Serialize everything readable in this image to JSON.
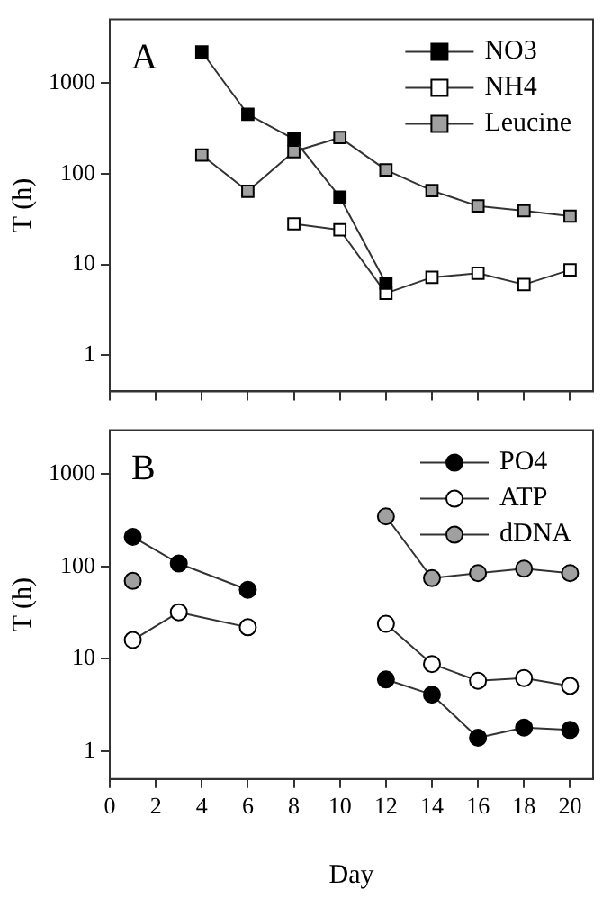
{
  "chart_data": [
    {
      "type": "line",
      "annotations": [
        "A"
      ],
      "ylabel": "T (h)",
      "log": "y",
      "grid": false,
      "legend": "top right",
      "marker": "square",
      "tick_labels": "y",
      "xlim": [
        0,
        21
      ],
      "xticks": [
        0,
        2,
        4,
        6,
        8,
        10,
        12,
        14,
        16,
        18,
        20
      ],
      "ylim": [
        0.4,
        5000
      ],
      "yticks": [
        1,
        10,
        100,
        1000
      ],
      "series": [
        {
          "name": "NO3",
          "color": "#000000",
          "x": [
            4,
            6,
            8,
            10,
            12
          ],
          "values": [
            2200,
            450,
            240,
            55,
            6.2
          ]
        },
        {
          "name": "NH4",
          "color": "#ffffff",
          "x": [
            8,
            10,
            12,
            14,
            16,
            18,
            20
          ],
          "values": [
            28,
            24,
            4.8,
            7.2,
            8,
            6,
            8.7
          ]
        },
        {
          "name": "Leucine",
          "color": "#a0a0a0",
          "x": [
            4,
            6,
            8,
            10,
            12,
            14,
            16,
            18,
            20
          ],
          "values": [
            160,
            64,
            175,
            250,
            110,
            65,
            44,
            39,
            34
          ]
        }
      ]
    },
    {
      "type": "line",
      "annotations": [
        "B"
      ],
      "ylabel": "T (h)",
      "xlabel": "Day",
      "log": "y",
      "grid": false,
      "legend": "top right",
      "marker": "circle",
      "xlim": [
        0,
        21
      ],
      "xticks": [
        0,
        2,
        4,
        6,
        8,
        10,
        12,
        14,
        16,
        18,
        20
      ],
      "ylim": [
        0.5,
        3000
      ],
      "yticks": [
        1,
        10,
        100,
        1000
      ],
      "series": [
        {
          "name": "PO4",
          "color": "#000000",
          "x": [
            1,
            3,
            6,
            9,
            12,
            14,
            16,
            18,
            20
          ],
          "values": [
            210,
            108,
            56,
            null,
            6,
            4.1,
            1.4,
            1.8,
            1.7
          ]
        },
        {
          "name": "ATP",
          "color": "#ffffff",
          "x": [
            1,
            3,
            6,
            9,
            12,
            14,
            16,
            18,
            20
          ],
          "values": [
            16,
            32,
            22,
            null,
            24,
            8.8,
            5.8,
            6.2,
            5.1
          ]
        },
        {
          "name": "dDNA",
          "color": "#a0a0a0",
          "x": [
            1,
            9,
            12,
            14,
            16,
            18,
            20
          ],
          "values": [
            70,
            null,
            350,
            75,
            85,
            95,
            85
          ]
        }
      ]
    }
  ]
}
